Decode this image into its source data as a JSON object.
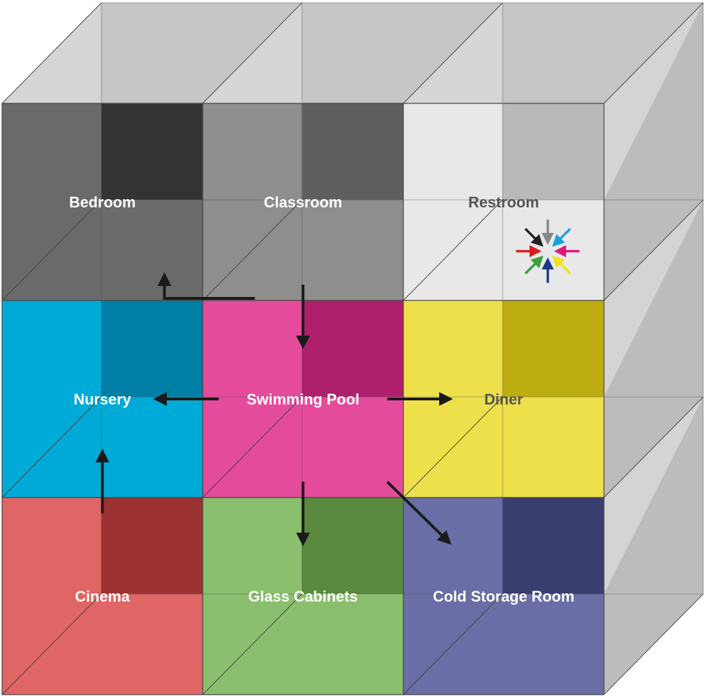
{
  "diagram": {
    "rooms": [
      {
        "id": "bedroom",
        "label": "Bedroom",
        "row": 0,
        "col": 0,
        "front": "#6b6a6a",
        "back": "#343333",
        "label_color": "#ffffff"
      },
      {
        "id": "classroom",
        "label": "Classroom",
        "row": 0,
        "col": 1,
        "front": "#8e8e8e",
        "back": "#5f5f5f",
        "label_color": "#ffffff"
      },
      {
        "id": "restroom",
        "label": "Restroom",
        "row": 0,
        "col": 2,
        "front": "#e8e8e8",
        "back": "#b9b9b9",
        "label_color": "#555555"
      },
      {
        "id": "nursery",
        "label": "Nursery",
        "row": 1,
        "col": 0,
        "front": "#00aad6",
        "back": "#007fa6",
        "label_color": "#ffffff"
      },
      {
        "id": "swimming-pool",
        "label": "Swimming Pool",
        "row": 1,
        "col": 1,
        "front": "#e44b9b",
        "back": "#ae206b",
        "label_color": "#ffffff"
      },
      {
        "id": "diner",
        "label": "Diner",
        "row": 1,
        "col": 2,
        "front": "#ede04a",
        "back": "#bdad10",
        "label_color": "#555555"
      },
      {
        "id": "cinema",
        "label": "Cinema",
        "row": 2,
        "col": 0,
        "front": "#e06565",
        "back": "#9d3232",
        "label_color": "#ffffff"
      },
      {
        "id": "glass-cabinets",
        "label": "Glass Cabinets",
        "row": 2,
        "col": 1,
        "front": "#89bf6d",
        "back": "#5a8a3d",
        "label_color": "#ffffff"
      },
      {
        "id": "cold-storage-room",
        "label": "Cold Storage Room",
        "row": 2,
        "col": 2,
        "front": "#6a6ea6",
        "back": "#3a3e6e",
        "label_color": "#ffffff"
      }
    ],
    "arrows": [
      {
        "from": "swimming-pool",
        "to": "nursery"
      },
      {
        "from": "swimming-pool",
        "to": "diner"
      },
      {
        "from": "swimming-pool",
        "to": "glass-cabinets"
      },
      {
        "from": "swimming-pool",
        "to": "cold-storage-room"
      },
      {
        "from": "classroom",
        "to": "swimming-pool"
      },
      {
        "from": "classroom",
        "to": "bedroom"
      },
      {
        "from": "cinema",
        "to": "nursery"
      }
    ],
    "legend_arrow_colors": [
      "#222222",
      "#888888",
      "#1aa0dc",
      "#e0157f",
      "#f2e21a",
      "#1a3a8c",
      "#3aa03a",
      "#d91c1c"
    ],
    "arrow_color": "#1a1a1a"
  }
}
